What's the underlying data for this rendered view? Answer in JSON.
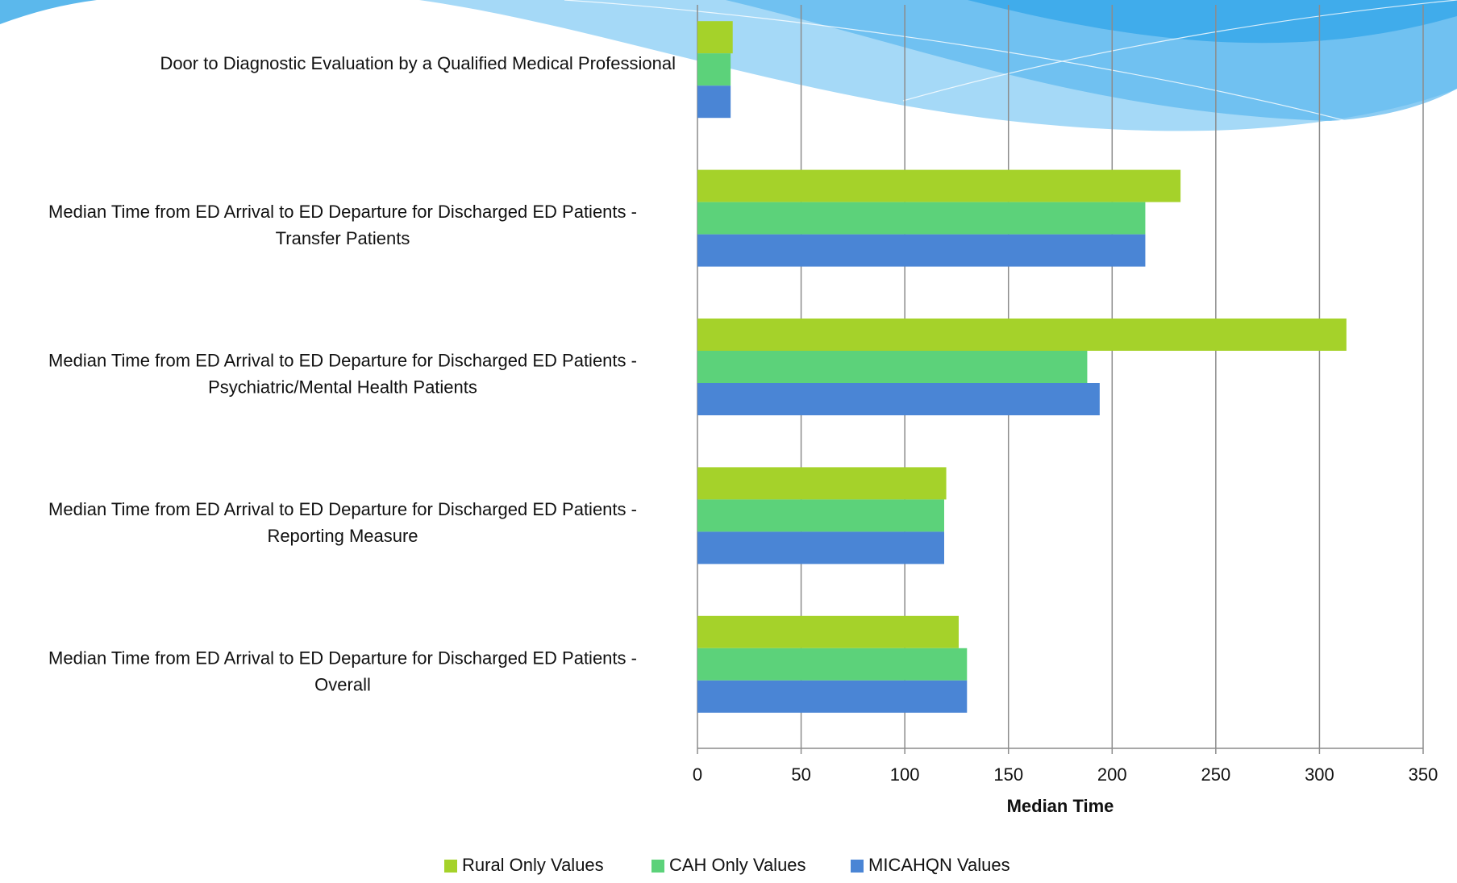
{
  "chart_data": {
    "type": "bar",
    "orientation": "horizontal",
    "xlabel": "Median Time",
    "categories": [
      "Door to Diagnostic Evaluation by a Qualified Medical Professional",
      "Median Time from ED Arrival to ED Departure for Discharged ED Patients - Transfer Patients",
      "Median Time from ED Arrival to ED Departure for Discharged ED Patients - Psychiatric/Mental Health Patients",
      "Median Time from ED Arrival to ED Departure for Discharged ED Patients - Reporting Measure",
      "Median Time from ED Arrival to ED Departure for Discharged ED Patients - Overall"
    ],
    "series": [
      {
        "name": "Rural Only Values",
        "color": "#a5d22a",
        "values": [
          17,
          233,
          313,
          120,
          126
        ]
      },
      {
        "name": "CAH Only Values",
        "color": "#5cd27a",
        "values": [
          16,
          216,
          188,
          119,
          130
        ]
      },
      {
        "name": "MICAHQN Values",
        "color": "#4a85d5",
        "values": [
          16,
          216,
          194,
          119,
          130
        ]
      }
    ],
    "xlim": [
      0,
      350
    ],
    "xticks": [
      0,
      50,
      100,
      150,
      200,
      250,
      300,
      350
    ],
    "grid": true,
    "legend": "bottom"
  }
}
